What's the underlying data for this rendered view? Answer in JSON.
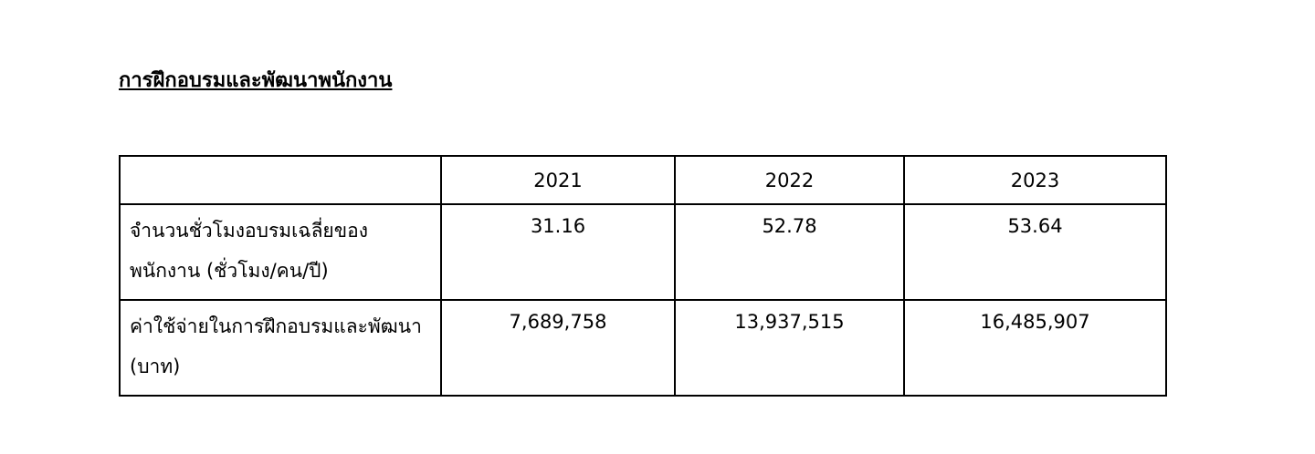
{
  "title": "การฝึกอบรมและพัฒนาพนักงาน",
  "table": {
    "header": [
      "2021",
      "2022",
      "2023"
    ],
    "rows": [
      {
        "label": "จำนวนชั่วโมงอบรมเฉลี่ยของพนักงาน (ชั่วโมง/คน/ปี)",
        "values": [
          "31.16",
          "52.78",
          "53.64"
        ]
      },
      {
        "label": "ค่าใช้จ่ายในการฝึกอบรมและพัฒนา (บาท)",
        "values": [
          "7,689,758",
          "13,937,515",
          "16,485,907"
        ]
      }
    ]
  }
}
